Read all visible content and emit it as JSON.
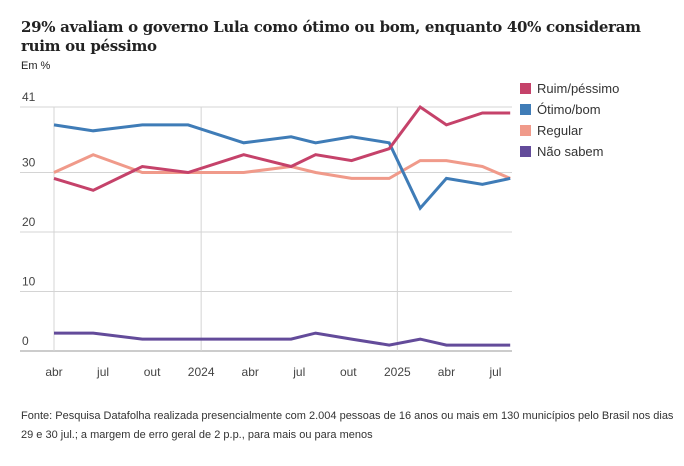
{
  "title": "29% avaliam o governo Lula como ótimo ou bom, enquanto 40% consideram ruim ou péssimo",
  "subtitle": "Em %",
  "footer": "Fonte: Pesquisa Datafolha realizada presencialmente com 2.004 pessoas de 16 anos ou mais em 130 municípios pelo Brasil nos dias 29 e 30 jul.; a margem de erro geral de 2 p.p., para mais ou para menos",
  "chart_data": {
    "type": "line",
    "title": "29% avaliam o governo Lula como ótimo ou bom, enquanto 40% consideram ruim ou péssimo",
    "subtitle": "Em %",
    "xlabel": "",
    "ylabel": "",
    "ylim": [
      0,
      41
    ],
    "yticks": [
      0,
      10,
      20,
      30,
      41
    ],
    "grid": true,
    "legend_position": "right",
    "x_months": [
      0,
      2.4,
      5.4,
      8.2,
      11.6,
      14.5,
      16,
      18.2,
      20.5,
      22.4,
      24,
      26.2,
      27.9
    ],
    "x": [
      "abr/2023",
      "jun/2023",
      "set/2023",
      "dez/2023",
      "mar/2024",
      "jun/2024",
      "ago/2024",
      "out/2024",
      "dez/2024",
      "fev/2025",
      "abr/2025",
      "jun/2025",
      "jul/2025"
    ],
    "xticks": [
      {
        "label": "abr",
        "month": 0
      },
      {
        "label": "jul",
        "month": 3
      },
      {
        "label": "out",
        "month": 6
      },
      {
        "label": "2024",
        "month": 9,
        "grid": true
      },
      {
        "label": "abr",
        "month": 12
      },
      {
        "label": "jul",
        "month": 15
      },
      {
        "label": "out",
        "month": 18
      },
      {
        "label": "2025",
        "month": 21,
        "grid": true
      },
      {
        "label": "abr",
        "month": 24
      },
      {
        "label": "jul",
        "month": 27
      }
    ],
    "series": [
      {
        "name": "Ruim/péssimo",
        "color": "#c5426a",
        "values": [
          29,
          27,
          31,
          30,
          33,
          31,
          33,
          32,
          34,
          41,
          38,
          40,
          40
        ]
      },
      {
        "name": "Ótimo/bom",
        "color": "#3f7cb7",
        "values": [
          38,
          37,
          38,
          38,
          35,
          36,
          35,
          36,
          35,
          24,
          29,
          28,
          29
        ]
      },
      {
        "name": "Regular",
        "color": "#f09a8a",
        "values": [
          30,
          33,
          30,
          30,
          30,
          31,
          30,
          29,
          29,
          32,
          32,
          31,
          29
        ]
      },
      {
        "name": "Não sabem",
        "color": "#634b9a",
        "values": [
          3,
          3,
          2,
          2,
          2,
          2,
          3,
          2,
          1,
          2,
          1,
          1,
          1
        ]
      }
    ]
  }
}
